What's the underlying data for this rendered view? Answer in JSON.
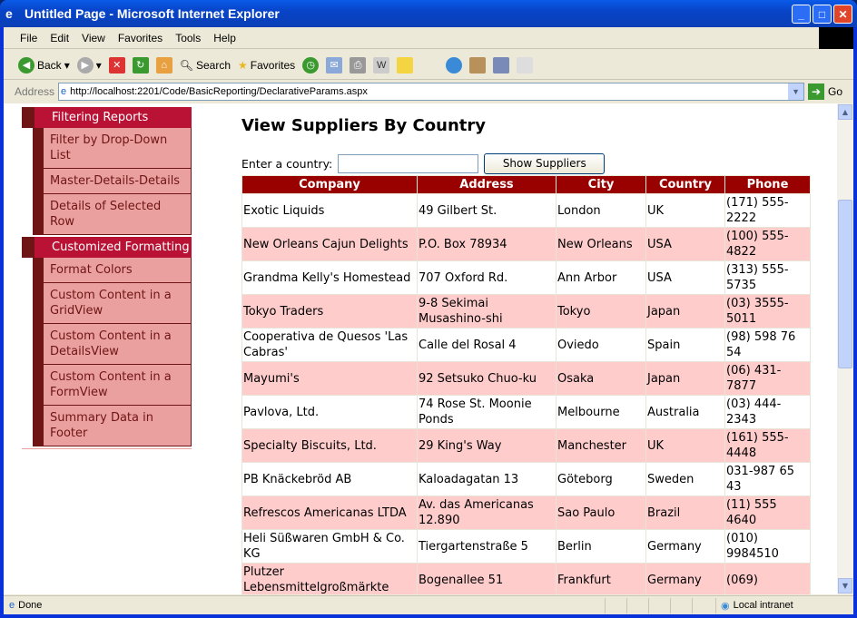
{
  "window": {
    "title": "Untitled Page - Microsoft Internet Explorer"
  },
  "menubar": [
    "File",
    "Edit",
    "View",
    "Favorites",
    "Tools",
    "Help"
  ],
  "toolbar": {
    "back": "Back",
    "search": "Search",
    "favorites": "Favorites"
  },
  "address": {
    "label": "Address",
    "url": "http://localhost:2201/Code/BasicReporting/DeclarativeParams.aspx",
    "go": "Go"
  },
  "sidebar": [
    {
      "header": "Filtering Reports",
      "items": [
        "Filter by Drop-Down List",
        "Master-Details-Details",
        "Details of Selected Row"
      ]
    },
    {
      "header": "Customized Formatting",
      "items": [
        "Format Colors",
        "Custom Content in a GridView",
        "Custom Content in a DetailsView",
        "Custom Content in a FormView",
        "Summary Data in Footer"
      ]
    }
  ],
  "main": {
    "title": "View Suppliers By Country",
    "country_label": "Enter a country:",
    "country_value": "",
    "show_button": "Show Suppliers"
  },
  "grid": {
    "columns": [
      "Company",
      "Address",
      "City",
      "Country",
      "Phone"
    ],
    "rows": [
      [
        "Exotic Liquids",
        "49 Gilbert St.",
        "London",
        "UK",
        "(171) 555-2222"
      ],
      [
        "New Orleans Cajun Delights",
        "P.O. Box 78934",
        "New Orleans",
        "USA",
        "(100) 555-4822"
      ],
      [
        "Grandma Kelly's Homestead",
        "707 Oxford Rd.",
        "Ann Arbor",
        "USA",
        "(313) 555-5735"
      ],
      [
        "Tokyo Traders",
        "9-8 Sekimai Musashino-shi",
        "Tokyo",
        "Japan",
        "(03) 3555-5011"
      ],
      [
        "Cooperativa de Quesos 'Las Cabras'",
        "Calle del Rosal 4",
        "Oviedo",
        "Spain",
        "(98) 598 76 54"
      ],
      [
        "Mayumi's",
        "92 Setsuko Chuo-ku",
        "Osaka",
        "Japan",
        "(06) 431-7877"
      ],
      [
        "Pavlova, Ltd.",
        "74 Rose St. Moonie Ponds",
        "Melbourne",
        "Australia",
        "(03) 444-2343"
      ],
      [
        "Specialty Biscuits, Ltd.",
        "29 King's Way",
        "Manchester",
        "UK",
        "(161) 555-4448"
      ],
      [
        "PB Knäckebröd AB",
        "Kaloadagatan 13",
        "Göteborg",
        "Sweden",
        "031-987 65 43"
      ],
      [
        "Refrescos Americanas LTDA",
        "Av. das Americanas 12.890",
        "Sao Paulo",
        "Brazil",
        "(11) 555 4640"
      ],
      [
        "Heli Süßwaren GmbH & Co. KG",
        "Tiergartenstraße 5",
        "Berlin",
        "Germany",
        "(010) 9984510"
      ],
      [
        "Plutzer Lebensmittelgroßmärkte",
        "Bogenallee 51",
        "Frankfurt",
        "Germany",
        "(069)"
      ]
    ]
  },
  "status": {
    "text": "Done",
    "zone": "Local intranet"
  },
  "colors": {
    "header_bg": "#990000",
    "alt_row": "#ffcccc",
    "menu_header": "#b91234",
    "menu_item": "#eba0a0"
  }
}
